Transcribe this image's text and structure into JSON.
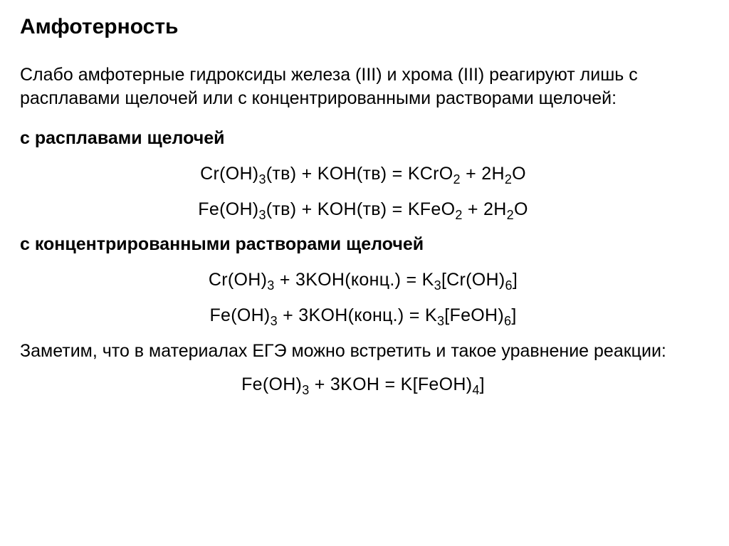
{
  "title": "Амфотерность",
  "intro": "Слабо амфотерные гидроксиды железа (III) и хрома (III) реагируют лишь с расплавами щелочей или с концентрированными растворами щелочей:",
  "section1": {
    "heading": "с расплавами щелочей",
    "eq1": {
      "lhs1": "Cr(OH)",
      "lhs1_sub": "3",
      "lhs1_state": "(тв)",
      "lhs2": "KOH(тв)",
      "rhs1": "KCrO",
      "rhs1_sub": "2",
      "rhs2_coeff": "2",
      "rhs2": "H",
      "rhs2_sub1": "2",
      "rhs2_ox": "O"
    },
    "eq2": {
      "lhs1": "Fe(OH)",
      "lhs1_sub": "3",
      "lhs1_state": "(тв)",
      "lhs2": "KOH(тв)",
      "rhs1": "KFeO",
      "rhs1_sub": "2",
      "rhs2_coeff": "2",
      "rhs2": "H",
      "rhs2_sub1": "2",
      "rhs2_ox": "O"
    }
  },
  "section2": {
    "heading": "с концентрированными растворами щелочей",
    "eq1": {
      "lhs1": "Cr(OH)",
      "lhs1_sub": "3",
      "lhs2_coeff": "3",
      "lhs2": "KOH(конц.)",
      "rhs1": "K",
      "rhs1_sub": "3",
      "rhs1_br": "[Cr(OH)",
      "rhs1_sub2": "6",
      "rhs1_close": "]"
    },
    "eq2": {
      "lhs1": "Fe(OH)",
      "lhs1_sub": "3",
      "lhs2_coeff": "3",
      "lhs2": "KOH(конц.)",
      "rhs1": "K",
      "rhs1_sub": "3",
      "rhs1_br": "[FeOH)",
      "rhs1_sub2": "6",
      "rhs1_close": "]"
    }
  },
  "note": "Заметим, что в материалах ЕГЭ можно встретить и такое уравнение реакции:",
  "eq_final": {
    "lhs1": "Fe(OH)",
    "lhs1_sub": "3",
    "lhs2_coeff": "3",
    "lhs2": "KOH",
    "rhs1": "K[FeOH)",
    "rhs1_sub": "4",
    "rhs1_close": "]"
  },
  "plus": " + ",
  "eq": " = "
}
